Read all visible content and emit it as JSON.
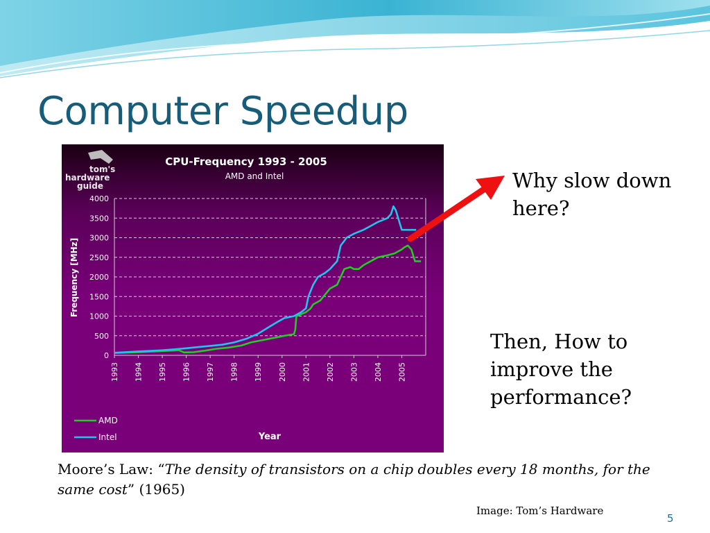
{
  "slide": {
    "title": "Computer Speedup",
    "callout_1": "Why slow down here?",
    "callout_2": "Then, How to improve the performance?",
    "moore_prefix": "Moore’s Law: “",
    "moore_quote": "The density of transistors on a chip doubles every 18 months, for the same cost",
    "moore_suffix": "” (1965)",
    "credit": "Image: Tom’s Hardware",
    "page_number": "5"
  },
  "logo": {
    "line1": "tom's",
    "line2": "hardware",
    "line3": "guide"
  },
  "colors": {
    "title": "#175d7a",
    "chart_bg": "#7a007a",
    "amd": "#22cc22",
    "intel": "#22c4ee",
    "arrow": "#ee1111"
  },
  "chart_data": {
    "type": "line",
    "title": "CPU-Frequency 1993 - 2005",
    "subtitle": "AMD and Intel",
    "xlabel": "Year",
    "ylabel": "Frequency [MHz]",
    "xlim": [
      1993,
      2006
    ],
    "ylim": [
      0,
      4000
    ],
    "yticks": [
      0,
      500,
      1000,
      1500,
      2000,
      2500,
      3000,
      3500,
      4000
    ],
    "xticks": [
      1993,
      1994,
      1995,
      1996,
      1997,
      1998,
      1999,
      2000,
      2001,
      2002,
      2003,
      2004,
      2005
    ],
    "grid": true,
    "legend_position": "bottom-left",
    "series": [
      {
        "name": "AMD",
        "points": [
          [
            1993,
            60
          ],
          [
            1994,
            80
          ],
          [
            1995,
            110
          ],
          [
            1995.7,
            130
          ],
          [
            1995.9,
            75
          ],
          [
            1996.3,
            80
          ],
          [
            1996.8,
            120
          ],
          [
            1997.3,
            170
          ],
          [
            1997.8,
            200
          ],
          [
            1998.3,
            250
          ],
          [
            1998.7,
            330
          ],
          [
            1999.2,
            390
          ],
          [
            1999.7,
            450
          ],
          [
            2000.1,
            500
          ],
          [
            2000.5,
            540
          ],
          [
            2000.55,
            650
          ],
          [
            2000.6,
            1000
          ],
          [
            2001.0,
            1100
          ],
          [
            2001.2,
            1200
          ],
          [
            2001.3,
            1300
          ],
          [
            2001.6,
            1400
          ],
          [
            2001.8,
            1550
          ],
          [
            2002.0,
            1700
          ],
          [
            2002.3,
            1800
          ],
          [
            2002.45,
            2000
          ],
          [
            2002.6,
            2200
          ],
          [
            2002.85,
            2250
          ],
          [
            2003.0,
            2200
          ],
          [
            2003.2,
            2200
          ],
          [
            2003.4,
            2300
          ],
          [
            2003.7,
            2400
          ],
          [
            2004.0,
            2500
          ],
          [
            2004.4,
            2550
          ],
          [
            2004.7,
            2600
          ],
          [
            2005.0,
            2700
          ],
          [
            2005.1,
            2750
          ],
          [
            2005.25,
            2800
          ],
          [
            2005.4,
            2700
          ],
          [
            2005.55,
            2400
          ],
          [
            2005.8,
            2400
          ]
        ]
      },
      {
        "name": "Intel",
        "points": [
          [
            1993,
            66
          ],
          [
            1994,
            100
          ],
          [
            1995,
            130
          ],
          [
            1995.6,
            160
          ],
          [
            1996.0,
            180
          ],
          [
            1996.5,
            210
          ],
          [
            1997.0,
            240
          ],
          [
            1997.5,
            270
          ],
          [
            1998.0,
            330
          ],
          [
            1998.5,
            420
          ],
          [
            1999.0,
            550
          ],
          [
            1999.4,
            700
          ],
          [
            1999.8,
            850
          ],
          [
            2000.1,
            950
          ],
          [
            2000.5,
            1000
          ],
          [
            2000.8,
            1100
          ],
          [
            2001.0,
            1200
          ],
          [
            2001.1,
            1500
          ],
          [
            2001.3,
            1800
          ],
          [
            2001.5,
            2000
          ],
          [
            2001.8,
            2100
          ],
          [
            2002.0,
            2200
          ],
          [
            2002.3,
            2400
          ],
          [
            2002.45,
            2800
          ],
          [
            2002.7,
            3000
          ],
          [
            2003.0,
            3100
          ],
          [
            2003.4,
            3200
          ],
          [
            2003.7,
            3300
          ],
          [
            2004.0,
            3400
          ],
          [
            2004.4,
            3500
          ],
          [
            2004.55,
            3600
          ],
          [
            2004.65,
            3800
          ],
          [
            2004.75,
            3700
          ],
          [
            2004.9,
            3400
          ],
          [
            2005.0,
            3200
          ],
          [
            2005.3,
            3200
          ],
          [
            2005.6,
            3200
          ]
        ]
      }
    ]
  }
}
